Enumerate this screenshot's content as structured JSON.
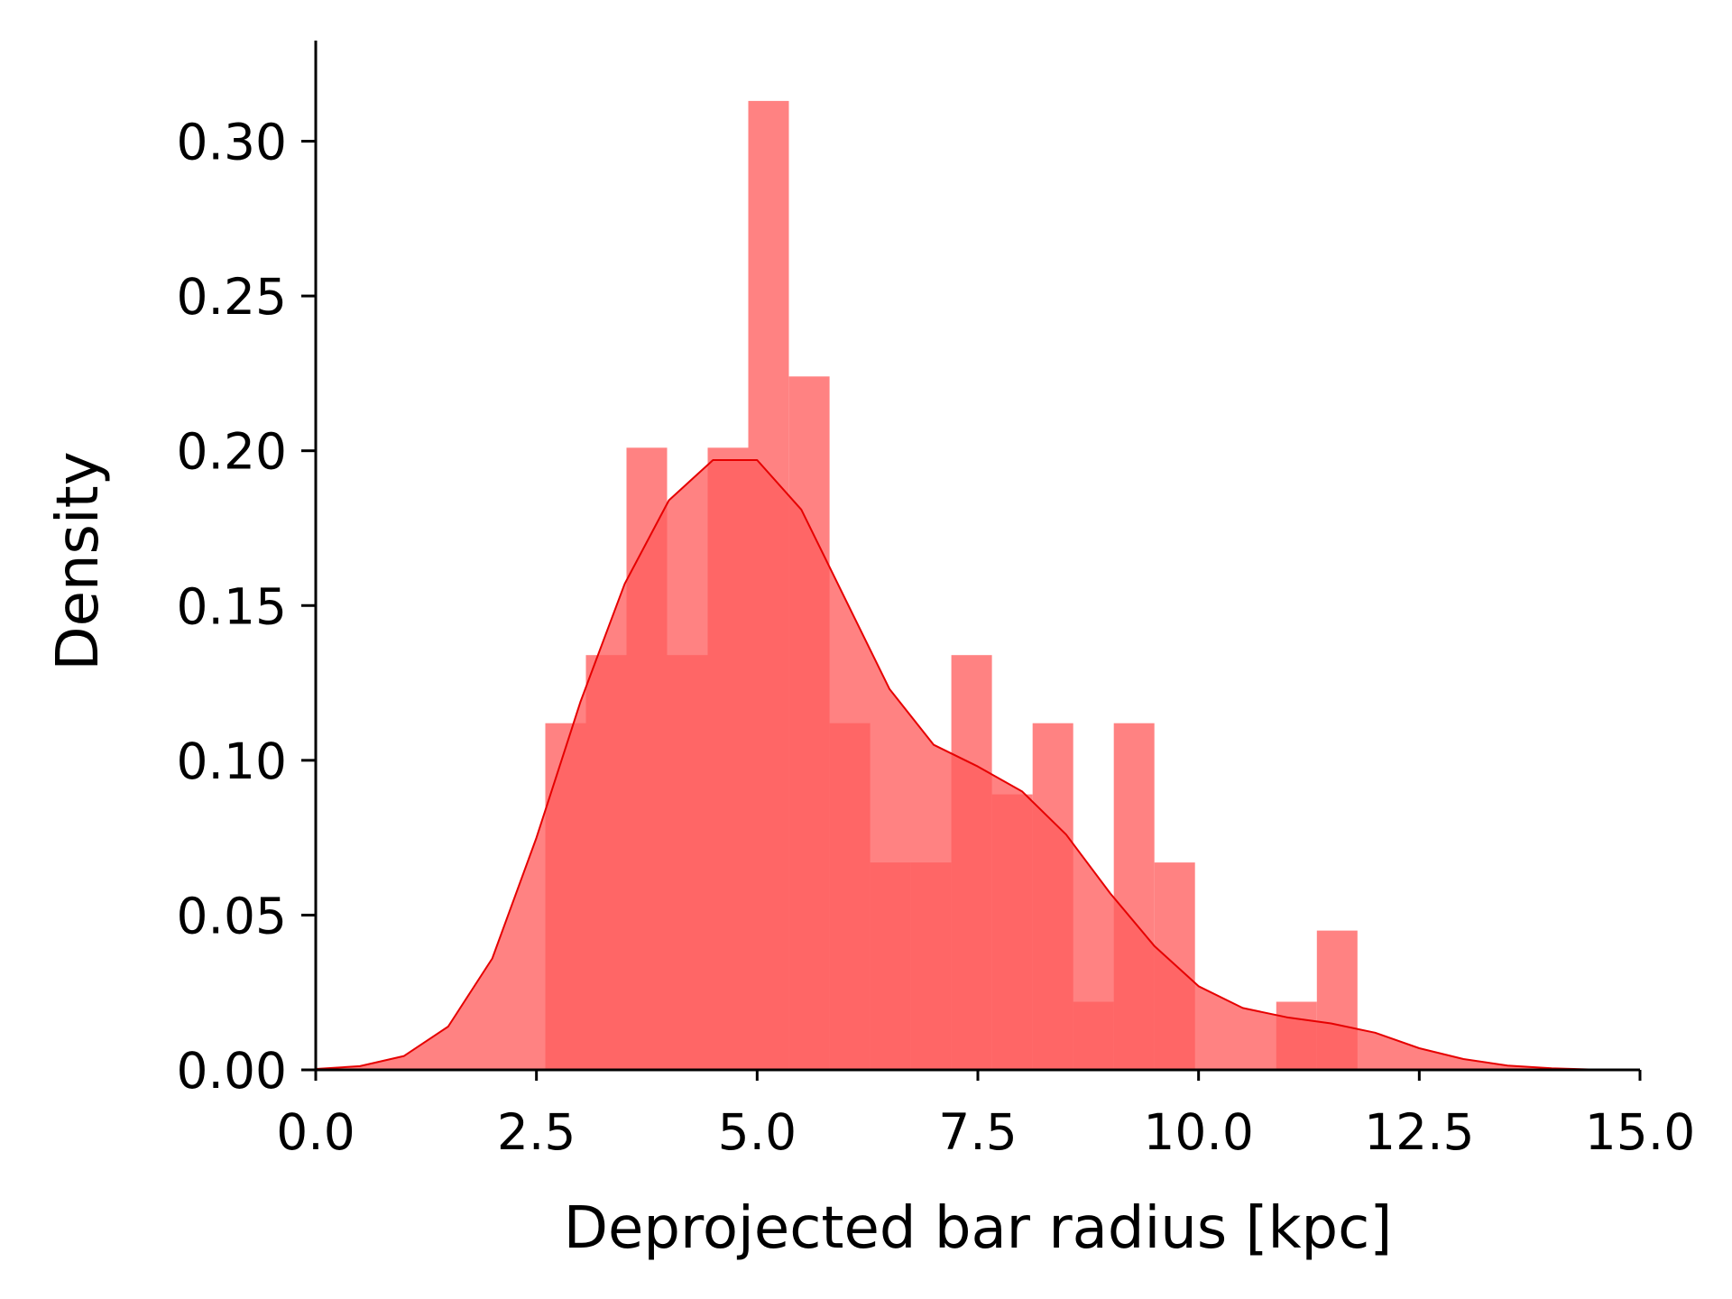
{
  "chart_data": {
    "type": "bar",
    "subtype": "histogram with kde overlay",
    "title": "",
    "xlabel": "Deprojected bar radius [kpc]",
    "ylabel": "Density",
    "xlim": [
      0.0,
      15.0
    ],
    "ylim": [
      0.0,
      0.33
    ],
    "x_ticks": [
      "0.0",
      "2.5",
      "5.0",
      "7.5",
      "10.0",
      "12.5",
      "15.0"
    ],
    "y_ticks": [
      "0.00",
      "0.05",
      "0.10",
      "0.15",
      "0.20",
      "0.25",
      "0.30"
    ],
    "grid": false,
    "legend": "none",
    "colors": {
      "bars": "#ff7f7f",
      "kde_fill": "#ff4444",
      "kde_line": "#e60000",
      "axis": "#000000"
    },
    "histogram": {
      "bin_width": 0.46,
      "bins": [
        {
          "x0": 2.6,
          "x1": 3.06,
          "density": 0.112
        },
        {
          "x0": 3.06,
          "x1": 3.52,
          "density": 0.134
        },
        {
          "x0": 3.52,
          "x1": 3.98,
          "density": 0.201
        },
        {
          "x0": 3.98,
          "x1": 4.44,
          "density": 0.134
        },
        {
          "x0": 4.44,
          "x1": 4.9,
          "density": 0.201
        },
        {
          "x0": 4.9,
          "x1": 5.36,
          "density": 0.313
        },
        {
          "x0": 5.36,
          "x1": 5.82,
          "density": 0.224
        },
        {
          "x0": 5.82,
          "x1": 6.28,
          "density": 0.112
        },
        {
          "x0": 6.28,
          "x1": 6.74,
          "density": 0.067
        },
        {
          "x0": 6.74,
          "x1": 7.2,
          "density": 0.067
        },
        {
          "x0": 7.2,
          "x1": 7.66,
          "density": 0.134
        },
        {
          "x0": 7.66,
          "x1": 8.12,
          "density": 0.089
        },
        {
          "x0": 8.12,
          "x1": 8.58,
          "density": 0.112
        },
        {
          "x0": 8.58,
          "x1": 9.04,
          "density": 0.022
        },
        {
          "x0": 9.04,
          "x1": 9.5,
          "density": 0.112
        },
        {
          "x0": 9.5,
          "x1": 9.96,
          "density": 0.067
        },
        {
          "x0": 9.96,
          "x1": 10.42,
          "density": 0.0
        },
        {
          "x0": 10.42,
          "x1": 10.88,
          "density": 0.0
        },
        {
          "x0": 10.88,
          "x1": 11.34,
          "density": 0.022
        },
        {
          "x0": 11.34,
          "x1": 11.8,
          "density": 0.045
        }
      ]
    },
    "kde": {
      "x": [
        0.0,
        0.5,
        1.0,
        1.5,
        2.0,
        2.5,
        3.0,
        3.5,
        4.0,
        4.5,
        5.0,
        5.5,
        6.0,
        6.5,
        7.0,
        7.5,
        8.0,
        8.5,
        9.0,
        9.5,
        10.0,
        10.5,
        11.0,
        11.5,
        12.0,
        12.5,
        13.0,
        13.5,
        14.0,
        14.5,
        15.0
      ],
      "y": [
        0.0003,
        0.0012,
        0.0045,
        0.014,
        0.036,
        0.075,
        0.119,
        0.157,
        0.184,
        0.197,
        0.197,
        0.181,
        0.152,
        0.123,
        0.105,
        0.098,
        0.09,
        0.076,
        0.057,
        0.04,
        0.027,
        0.02,
        0.017,
        0.015,
        0.012,
        0.007,
        0.0035,
        0.0014,
        0.0005,
        0.0001,
        0.0
      ]
    }
  }
}
